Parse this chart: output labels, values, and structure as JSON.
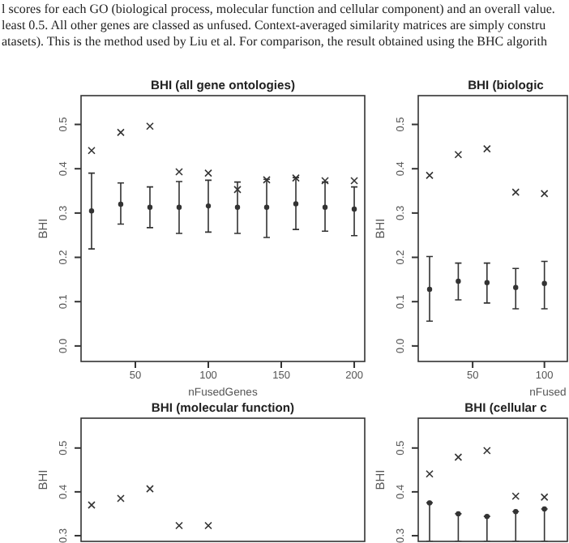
{
  "chart_data": [
    {
      "type": "scatter",
      "title": "BHI (all gene ontologies)",
      "xlabel": "nFusedGenes",
      "ylabel": "BHI",
      "xlim": [
        12.8,
        207.2
      ],
      "ylim": [
        -0.035,
        0.565
      ],
      "xticks": [
        50,
        100,
        150,
        200
      ],
      "yticks": [
        {
          "value": 0,
          "label": "0.0"
        },
        {
          "value": 0.1,
          "label": "0.1"
        },
        {
          "value": 0.2,
          "label": "0.2"
        },
        {
          "value": 0.3,
          "label": "0.3"
        },
        {
          "value": 0.4,
          "label": "0.4"
        },
        {
          "value": 0.5,
          "label": "0.5"
        }
      ],
      "annotations": [
        "l scores for each GO (biological process, molecular function and cellular component) and an overall value.",
        "least 0.5. All other genes are classed as unfused. Context-averaged similarity matrices are simply constru",
        "atasets). This is the method used by Liu et al. For comparison, the result obtained using the BHC algorith"
      ],
      "series": [
        {
          "type": "scatter",
          "marker": "cross",
          "color": "#333333",
          "x": [
            20,
            40,
            60,
            80,
            100,
            120,
            140,
            160,
            180,
            200
          ],
          "values": [
            0.441,
            0.482,
            0.496,
            0.393,
            0.39,
            0.353,
            0.375,
            0.379,
            0.373,
            0.373
          ]
        },
        {
          "type": "scatter",
          "marker": "circle",
          "color": "#333333",
          "x": [
            20,
            40,
            60,
            80,
            100,
            120,
            140,
            160,
            180,
            200
          ],
          "values": [
            0.305,
            0.32,
            0.313,
            0.313,
            0.316,
            0.313,
            0.313,
            0.321,
            0.313,
            0.309
          ],
          "errors": [
            [
              0.219,
              0.39
            ],
            [
              0.275,
              0.368
            ],
            [
              0.267,
              0.359
            ],
            [
              0.254,
              0.371
            ],
            [
              0.257,
              0.374
            ],
            [
              0.254,
              0.37
            ],
            [
              0.245,
              0.376
            ],
            [
              0.263,
              0.38
            ],
            [
              0.259,
              0.37
            ],
            [
              0.249,
              0.359
            ]
          ]
        }
      ]
    },
    {
      "type": "scatter",
      "title": "BHI (biologic",
      "xlabel": "nFused",
      "ylabel": "BHI",
      "xlim": [
        12.1,
        116
      ],
      "ylim": [
        -0.035,
        0.565
      ],
      "xticks": [
        50,
        100
      ],
      "yticks": [
        {
          "value": 0,
          "label": "0.0"
        },
        {
          "value": 0.1,
          "label": "0.1"
        },
        {
          "value": 0.2,
          "label": "0.2"
        },
        {
          "value": 0.3,
          "label": "0.3"
        },
        {
          "value": 0.4,
          "label": "0.4"
        },
        {
          "value": 0.5,
          "label": "0.5"
        }
      ],
      "series": [
        {
          "type": "scatter",
          "marker": "cross",
          "color": "#333333",
          "x": [
            20,
            40,
            60,
            80,
            100
          ],
          "values": [
            0.385,
            0.432,
            0.445,
            0.347,
            0.344
          ]
        },
        {
          "type": "scatter",
          "marker": "circle",
          "color": "#333333",
          "x": [
            20,
            40,
            60,
            80,
            100
          ],
          "values": [
            0.128,
            0.146,
            0.143,
            0.132,
            0.141
          ],
          "errors": [
            [
              0.056,
              0.202
            ],
            [
              0.104,
              0.187
            ],
            [
              0.097,
              0.187
            ],
            [
              0.084,
              0.175
            ],
            [
              0.084,
              0.191
            ]
          ]
        }
      ]
    },
    {
      "type": "scatter",
      "title": "BHI (molecular function)",
      "ylabel": "BHI",
      "tick_labels": "y",
      "xlim": [
        12.8,
        207.2
      ],
      "ylim": [
        0.287,
        0.568
      ],
      "yticks": [
        {
          "value": 0.3,
          "label": "0.3"
        },
        {
          "value": 0.4,
          "label": "0.4"
        },
        {
          "value": 0.5,
          "label": "0.5"
        }
      ],
      "series": [
        {
          "type": "scatter",
          "marker": "cross",
          "color": "#333333",
          "x": [
            20,
            40,
            60,
            80,
            100
          ],
          "values": [
            0.37,
            0.385,
            0.407,
            0.323,
            0.323
          ]
        }
      ]
    },
    {
      "type": "scatter",
      "title": "BHI (cellular c",
      "ylabel": "BHI",
      "tick_labels": "y",
      "xlim": [
        12.1,
        116
      ],
      "ylim": [
        0.287,
        0.568
      ],
      "yticks": [
        {
          "value": 0.3,
          "label": "0.3"
        },
        {
          "value": 0.4,
          "label": "0.4"
        },
        {
          "value": 0.5,
          "label": "0.5"
        }
      ],
      "series": [
        {
          "type": "scatter",
          "marker": "cross",
          "color": "#333333",
          "x": [
            20,
            40,
            60,
            80,
            100
          ],
          "values": [
            0.441,
            0.479,
            0.494,
            0.39,
            0.388
          ]
        },
        {
          "type": "scatter",
          "marker": "circle",
          "color": "#333333",
          "x": [
            20,
            40,
            60,
            80,
            100
          ],
          "values": [
            0.375,
            0.35,
            0.344,
            0.355,
            0.361
          ],
          "errors": [
            [
              0.287,
              0.375
            ],
            [
              0.287,
              0.35
            ],
            [
              0.287,
              0.344
            ],
            [
              0.287,
              0.355
            ],
            [
              0.287,
              0.361
            ]
          ]
        }
      ]
    }
  ]
}
